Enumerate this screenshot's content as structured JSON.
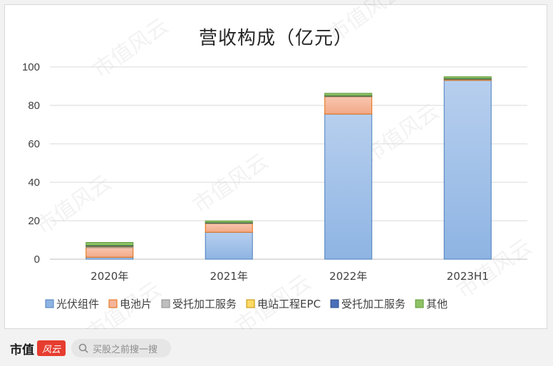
{
  "chart_data": {
    "type": "bar",
    "stacked": true,
    "title": "营收构成（亿元）",
    "categories": [
      "2020年",
      "2021年",
      "2022年",
      "2023H1"
    ],
    "ylim": [
      0,
      100
    ],
    "yticks": [
      0,
      20,
      40,
      60,
      80,
      100
    ],
    "grid": true,
    "legend_position": "bottom",
    "series": [
      {
        "name": "光伏组件",
        "color": "#8eb4e3",
        "values": [
          1.0,
          14.0,
          75.5,
          93.0
        ]
      },
      {
        "name": "电池片",
        "color": "#f5b49a",
        "values": [
          5.0,
          4.5,
          9.0,
          0.5
        ]
      },
      {
        "name": "受托加工服务",
        "color": "#bfbfbf",
        "values": [
          0.6,
          0.3,
          0.3,
          0.2
        ]
      },
      {
        "name": "电站工程EPC",
        "color": "#ffd966",
        "values": [
          0.2,
          0.1,
          0.1,
          0.1
        ]
      },
      {
        "name": "受托加工服务",
        "color": "#4a6fb8",
        "values": [
          0.4,
          0.2,
          0.2,
          0.2
        ]
      },
      {
        "name": "其他",
        "color": "#8fc265",
        "values": [
          1.5,
          0.8,
          1.2,
          0.9
        ]
      }
    ],
    "series_borders": [
      "#4a7ebb",
      "#e46c0a",
      "#8c8c8c",
      "#bf9000",
      "#2f4f8f",
      "#5f9a3a"
    ]
  },
  "watermark": "市值风云",
  "footer": {
    "logo_text": "市值",
    "logo_mark": "风云",
    "search_placeholder": "买股之前搜一搜",
    "search_icon": "search-icon"
  }
}
